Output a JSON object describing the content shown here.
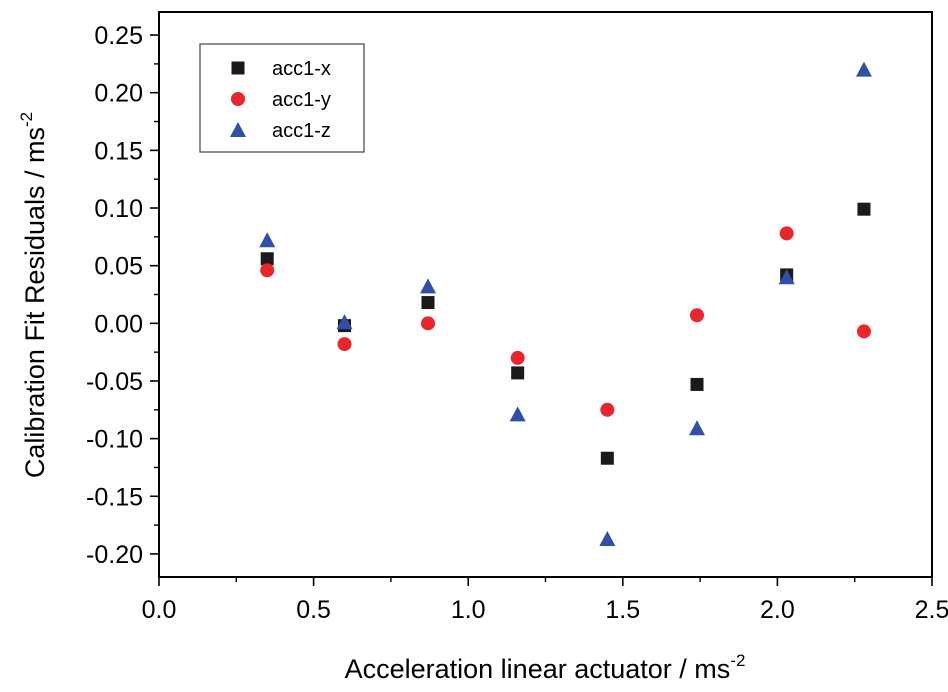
{
  "chart_data": {
    "type": "scatter",
    "title": "",
    "xlabel": "Acceleration linear actuator / ms",
    "xlabel_sup": "-2",
    "ylabel": "Calibration Fit Residuals / ms",
    "ylabel_sup": "-2",
    "xlim": [
      0.0,
      2.5
    ],
    "ylim": [
      -0.22,
      0.27
    ],
    "x_ticks": [
      0.0,
      0.5,
      1.0,
      1.5,
      2.0,
      2.5
    ],
    "x_tick_labels": [
      "0.0",
      "0.5",
      "1.0",
      "1.5",
      "2.0",
      "2.5"
    ],
    "y_ticks": [
      -0.2,
      -0.15,
      -0.1,
      -0.05,
      0.0,
      0.05,
      0.1,
      0.15,
      0.2,
      0.25
    ],
    "y_tick_labels": [
      "-0.20",
      "-0.15",
      "-0.10",
      "-0.05",
      "0.00",
      "0.05",
      "0.10",
      "0.15",
      "0.20",
      "0.25"
    ],
    "grid": false,
    "legend_position": "top-left",
    "x": [
      0.35,
      0.6,
      0.87,
      1.16,
      1.45,
      1.74,
      2.03,
      2.28
    ],
    "series": [
      {
        "name": "acc1-x",
        "marker": "square",
        "color": "#1a1a1a",
        "values": [
          0.056,
          -0.002,
          0.018,
          -0.043,
          -0.117,
          -0.053,
          0.042,
          0.099
        ]
      },
      {
        "name": "acc1-y",
        "marker": "circle",
        "color": "#e8262b",
        "values": [
          0.046,
          -0.018,
          0.0,
          -0.03,
          -0.075,
          0.007,
          0.078,
          -0.007
        ]
      },
      {
        "name": "acc1-z",
        "marker": "triangle",
        "color": "#2f4fa8",
        "values": [
          0.072,
          0.001,
          0.032,
          -0.079,
          -0.187,
          -0.091,
          0.04,
          0.22
        ]
      }
    ]
  }
}
